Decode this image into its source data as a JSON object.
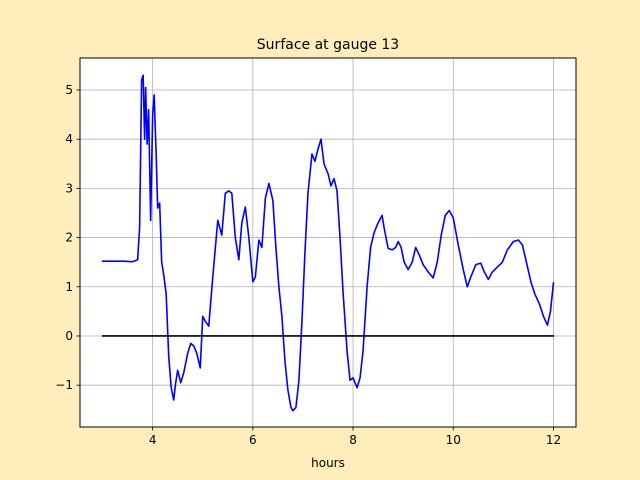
{
  "chart_data": {
    "type": "line",
    "title": "Surface at gauge 13",
    "xlabel": "hours",
    "ylabel": "",
    "xlim": [
      2.55,
      12.45
    ],
    "ylim": [
      -1.85,
      5.65
    ],
    "xticks": [
      4,
      6,
      8,
      10,
      12
    ],
    "yticks": [
      -1,
      0,
      1,
      2,
      3,
      4,
      5
    ],
    "xtick_labels": [
      "4",
      "6",
      "8",
      "10",
      "12"
    ],
    "ytick_labels": [
      "−1",
      "0",
      "1",
      "2",
      "3",
      "4",
      "5"
    ],
    "grid": true,
    "series": [
      {
        "color": "#0000ff",
        "points": [
          [
            3.0,
            1.52
          ],
          [
            3.2,
            1.52
          ],
          [
            3.4,
            1.52
          ],
          [
            3.6,
            1.51
          ],
          [
            3.7,
            1.55
          ],
          [
            3.74,
            2.2
          ],
          [
            3.78,
            5.2
          ],
          [
            3.81,
            5.3
          ],
          [
            3.84,
            4.0
          ],
          [
            3.86,
            5.05
          ],
          [
            3.89,
            3.9
          ],
          [
            3.92,
            4.6
          ],
          [
            3.96,
            2.35
          ],
          [
            4.0,
            4.5
          ],
          [
            4.03,
            4.9
          ],
          [
            4.07,
            3.7
          ],
          [
            4.1,
            2.6
          ],
          [
            4.14,
            2.7
          ],
          [
            4.18,
            1.5
          ],
          [
            4.22,
            1.25
          ],
          [
            4.27,
            0.85
          ],
          [
            4.32,
            -0.4
          ],
          [
            4.37,
            -1.05
          ],
          [
            4.42,
            -1.3
          ],
          [
            4.46,
            -0.95
          ],
          [
            4.5,
            -0.7
          ],
          [
            4.56,
            -0.95
          ],
          [
            4.62,
            -0.75
          ],
          [
            4.7,
            -0.35
          ],
          [
            4.76,
            -0.15
          ],
          [
            4.82,
            -0.2
          ],
          [
            4.88,
            -0.35
          ],
          [
            4.95,
            -0.65
          ],
          [
            5.0,
            0.4
          ],
          [
            5.05,
            0.3
          ],
          [
            5.12,
            0.2
          ],
          [
            5.2,
            1.2
          ],
          [
            5.3,
            2.35
          ],
          [
            5.38,
            2.05
          ],
          [
            5.45,
            2.9
          ],
          [
            5.52,
            2.95
          ],
          [
            5.58,
            2.9
          ],
          [
            5.65,
            2.0
          ],
          [
            5.72,
            1.55
          ],
          [
            5.78,
            2.3
          ],
          [
            5.85,
            2.62
          ],
          [
            5.92,
            2.0
          ],
          [
            6.0,
            1.1
          ],
          [
            6.05,
            1.2
          ],
          [
            6.12,
            1.95
          ],
          [
            6.18,
            1.8
          ],
          [
            6.25,
            2.8
          ],
          [
            6.32,
            3.1
          ],
          [
            6.4,
            2.75
          ],
          [
            6.46,
            1.8
          ],
          [
            6.52,
            1.0
          ],
          [
            6.58,
            0.4
          ],
          [
            6.64,
            -0.5
          ],
          [
            6.7,
            -1.1
          ],
          [
            6.76,
            -1.45
          ],
          [
            6.8,
            -1.52
          ],
          [
            6.86,
            -1.45
          ],
          [
            6.92,
            -0.9
          ],
          [
            6.98,
            0.3
          ],
          [
            7.04,
            1.7
          ],
          [
            7.1,
            2.9
          ],
          [
            7.18,
            3.7
          ],
          [
            7.24,
            3.55
          ],
          [
            7.3,
            3.8
          ],
          [
            7.36,
            4.0
          ],
          [
            7.42,
            3.5
          ],
          [
            7.5,
            3.3
          ],
          [
            7.56,
            3.05
          ],
          [
            7.62,
            3.2
          ],
          [
            7.68,
            2.95
          ],
          [
            7.74,
            2.0
          ],
          [
            7.8,
            0.9
          ],
          [
            7.88,
            -0.3
          ],
          [
            7.94,
            -0.9
          ],
          [
            8.0,
            -0.85
          ],
          [
            8.08,
            -1.05
          ],
          [
            8.14,
            -0.85
          ],
          [
            8.2,
            -0.3
          ],
          [
            8.28,
            1.0
          ],
          [
            8.35,
            1.8
          ],
          [
            8.42,
            2.1
          ],
          [
            8.5,
            2.3
          ],
          [
            8.58,
            2.45
          ],
          [
            8.62,
            2.2
          ],
          [
            8.7,
            1.78
          ],
          [
            8.78,
            1.75
          ],
          [
            8.85,
            1.8
          ],
          [
            8.9,
            1.92
          ],
          [
            8.96,
            1.8
          ],
          [
            9.02,
            1.5
          ],
          [
            9.1,
            1.35
          ],
          [
            9.18,
            1.5
          ],
          [
            9.25,
            1.8
          ],
          [
            9.32,
            1.65
          ],
          [
            9.4,
            1.45
          ],
          [
            9.5,
            1.3
          ],
          [
            9.6,
            1.18
          ],
          [
            9.68,
            1.5
          ],
          [
            9.76,
            2.05
          ],
          [
            9.84,
            2.45
          ],
          [
            9.92,
            2.55
          ],
          [
            10.0,
            2.4
          ],
          [
            10.1,
            1.85
          ],
          [
            10.2,
            1.35
          ],
          [
            10.28,
            1.0
          ],
          [
            10.35,
            1.2
          ],
          [
            10.45,
            1.45
          ],
          [
            10.55,
            1.48
          ],
          [
            10.62,
            1.3
          ],
          [
            10.7,
            1.15
          ],
          [
            10.78,
            1.3
          ],
          [
            10.88,
            1.4
          ],
          [
            10.98,
            1.5
          ],
          [
            11.08,
            1.75
          ],
          [
            11.2,
            1.92
          ],
          [
            11.3,
            1.95
          ],
          [
            11.38,
            1.85
          ],
          [
            11.46,
            1.5
          ],
          [
            11.55,
            1.1
          ],
          [
            11.63,
            0.85
          ],
          [
            11.72,
            0.65
          ],
          [
            11.8,
            0.4
          ],
          [
            11.88,
            0.22
          ],
          [
            11.94,
            0.5
          ],
          [
            12.0,
            1.08
          ]
        ]
      },
      {
        "color": "#000000",
        "points": [
          [
            3.0,
            0.0
          ],
          [
            12.0,
            0.0
          ]
        ]
      }
    ]
  }
}
